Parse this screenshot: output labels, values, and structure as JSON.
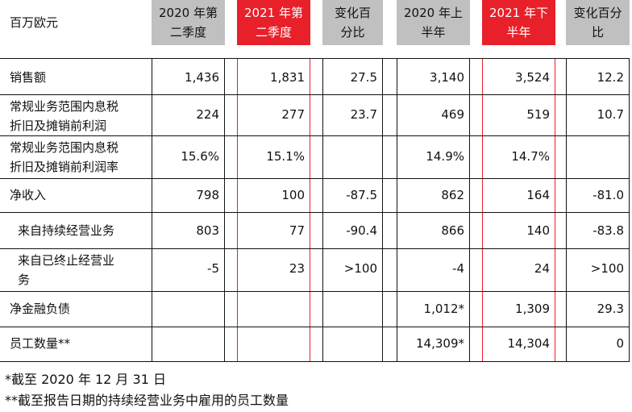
{
  "header": {
    "unit_label": "百万欧元",
    "columns": [
      {
        "line1": "2020 年第",
        "line2": "二季度",
        "style": "gray"
      },
      {
        "line1": "2021 年第",
        "line2": "二季度",
        "style": "red"
      },
      {
        "line1": "变化百",
        "line2": "分比",
        "style": "gray"
      },
      {
        "line1": "2020 年上",
        "line2": "半年",
        "style": "gray"
      },
      {
        "line1": "2021 年下",
        "line2": "半年",
        "style": "red"
      },
      {
        "line1": "变化百分",
        "line2": "比",
        "style": "gray"
      }
    ]
  },
  "rows": [
    {
      "label": "销售额",
      "values": [
        "1,436",
        "1,831",
        "27.5",
        "3,140",
        "3,524",
        "12.2"
      ]
    },
    {
      "label": "常规业务范围内息税折旧及摊销前利润",
      "label_line1": "常规业务范围内息税",
      "label_line2": "折旧及摊销前利润",
      "values": [
        "224",
        "277",
        "23.7",
        "469",
        "519",
        "10.7"
      ]
    },
    {
      "label": "常规业务范围内息税折旧及摊销前利润率",
      "label_line1": "常规业务范围内息税",
      "label_line2": "折旧及摊销前利润率",
      "values": [
        "15.6%",
        "15.1%",
        "",
        "14.9%",
        "14.7%",
        ""
      ]
    },
    {
      "label": "净收入",
      "values": [
        "798",
        "100",
        "-87.5",
        "862",
        "164",
        "-81.0"
      ]
    },
    {
      "label": "来自持续经营业务",
      "values": [
        "803",
        "77",
        "-90.4",
        "866",
        "140",
        "-83.8"
      ]
    },
    {
      "label": "来自已终止经营业务",
      "label_line1": "来自已终止经营业",
      "label_line2": "务",
      "values": [
        "-5",
        "23",
        ">100",
        "-4",
        "24",
        ">100"
      ]
    },
    {
      "label": "净金融负债",
      "values": [
        "",
        "",
        "",
        "1,012*",
        "1,309",
        "29.3"
      ]
    },
    {
      "label": "员工数量**",
      "values": [
        "",
        "",
        "",
        "14,309*",
        "14,304",
        "0"
      ]
    }
  ],
  "footnotes": [
    "*截至 2020 年 12 月 31 日",
    "**截至报告日期的持续经营业务中雇用的员工数量"
  ]
}
